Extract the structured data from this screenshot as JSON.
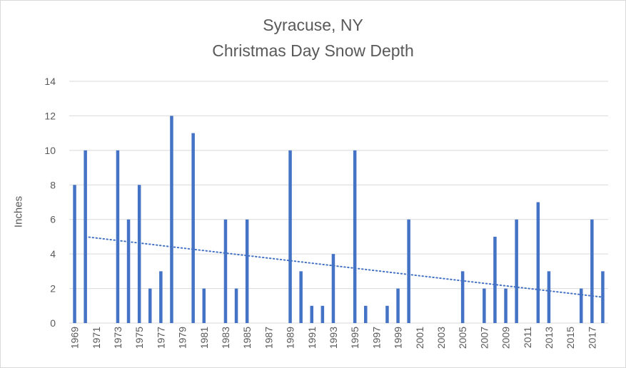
{
  "chart_data": {
    "type": "bar",
    "title": "Syracuse, NY",
    "subtitle": "Christmas Day Snow Depth",
    "xlabel": "",
    "ylabel": "Inches",
    "ylim": [
      0,
      14
    ],
    "yticks": [
      0,
      2,
      4,
      6,
      8,
      10,
      12,
      14
    ],
    "grid": true,
    "legend": "none",
    "bar_color": "#4472c4",
    "trendline": {
      "type": "linear",
      "style": "dotted",
      "color": "#4472c4",
      "start": [
        1970,
        5.0
      ],
      "end": [
        2018,
        1.5
      ]
    },
    "xtick_labels": [
      "1969",
      "1971",
      "1973",
      "1975",
      "1977",
      "1979",
      "1981",
      "1983",
      "1985",
      "1987",
      "1989",
      "1991",
      "1993",
      "1995",
      "1997",
      "1999",
      "2001",
      "2003",
      "2005",
      "2007",
      "2009",
      "2011",
      "2013",
      "2015",
      "2017"
    ],
    "categories": [
      1969,
      1970,
      1971,
      1972,
      1973,
      1974,
      1975,
      1976,
      1977,
      1978,
      1979,
      1980,
      1981,
      1982,
      1983,
      1984,
      1985,
      1986,
      1987,
      1988,
      1989,
      1990,
      1991,
      1992,
      1993,
      1994,
      1995,
      1996,
      1997,
      1998,
      1999,
      2000,
      2001,
      2002,
      2003,
      2004,
      2005,
      2006,
      2007,
      2008,
      2009,
      2010,
      2011,
      2012,
      2013,
      2014,
      2015,
      2016,
      2017,
      2018
    ],
    "values": [
      8,
      10,
      0,
      0,
      10,
      6,
      8,
      2,
      3,
      12,
      0,
      11,
      2,
      0,
      6,
      2,
      6,
      0,
      0,
      0,
      10,
      3,
      1,
      1,
      4,
      0,
      10,
      1,
      0,
      1,
      2,
      6,
      0,
      0,
      0,
      0,
      3,
      0,
      2,
      5,
      2,
      6,
      0,
      7,
      3,
      0,
      0,
      2,
      6,
      3
    ]
  }
}
